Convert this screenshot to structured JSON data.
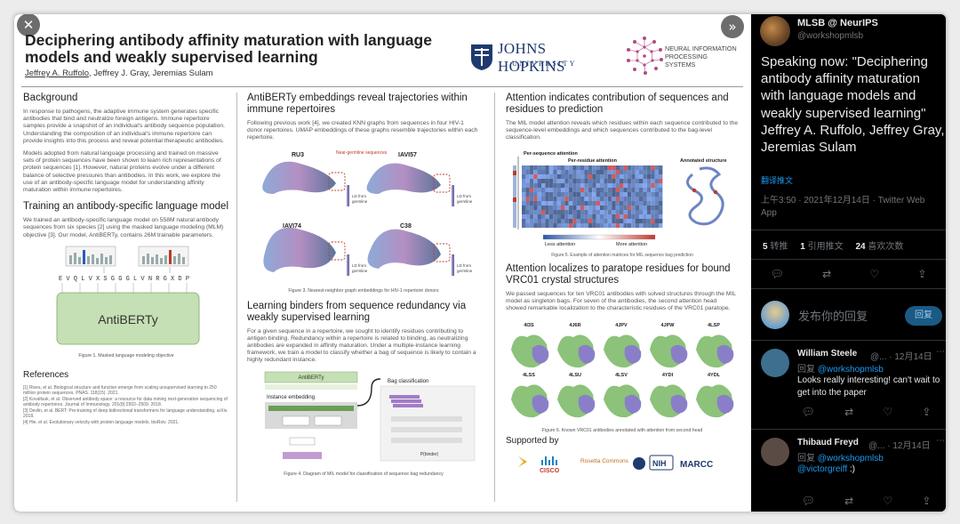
{
  "viewer": {
    "close_glyph": "✕",
    "expand_glyph": "»",
    "poster": {
      "title": "Deciphering antibody affinity maturation with language models and weakly supervised learning",
      "authors": {
        "first": "Jeffrey A. Ruffolo",
        "rest": ", Jeffrey J. Gray, Jeremias Sulam"
      },
      "logos": {
        "jhu_line1": "JOHNS HOPKINS",
        "jhu_line2": "UNIVERSITY",
        "neurips": "NEURAL INFORMATION PROCESSING SYSTEMS"
      },
      "col1": {
        "background_h": "Background",
        "background_p1": "In response to pathogens, the adaptive immune system generates specific antibodies that bind and neutralize foreign antigens. Immune repertoire samples provide a snapshot of an individual's antibody sequence population. Understanding the composition of an individual's immune repertoire can provide insights into this process and reveal potential therapeutic antibodies.",
        "background_p2": "Models adopted from natural language processing and trained on massive sets of protein sequences have been shown to learn rich representations of protein sequences [1]. However, natural proteins evolve under a different balance of selective pressures than antibodies. In this work, we explore the use of an antibody-specific language model for understanding affinity maturation within immune repertoires.",
        "training_h": "Training an antibody-specific language model",
        "training_p": "We trained an antibody-specific language model on 558M natural antibody sequences from six species [2] using the masked language modeling (MLM) objective [3]. Our model, AntiBERTy, contains 26M trainable parameters.",
        "sequence": "E V Q L V X S G G G L V N R G X D P",
        "model_label": "AntiBERTy",
        "fig1": "Figure 1. Masked language modeling objective",
        "refs_h": "References",
        "refs": [
          "[1]  Rives, et al. Biological structure and function emerge from scaling unsupervised learning to 250 million protein sequences. PNAS. 118(15). 2021.",
          "[2]  Kovaltsuk, et al. Observed antibody space: a resource for data mining next-generation sequencing of antibody repertoires. Journal of Immunology. 201(8):2502–2509. 2018.",
          "[3]  Devlin, et al. BERT: Pre-training of deep bidirectional transformers for language understanding. arXiv. 2018.",
          "[4]  Hie, et al. Evolutionary velocity with protein language models. bioRxiv. 2021."
        ]
      },
      "col2": {
        "embed_h": "AntiBERTy embeddings reveal trajectories within immune repertoires",
        "embed_p": "Following previous work [4], we created KNN graphs from sequences in four HIV-1 donor repertoires. UMAP embeddings of these graphs resemble trajectories within each repertoire.",
        "umap_labels": [
          "RU3",
          "IAVI57",
          "IAVI74",
          "C38"
        ],
        "near_germline": "Near-germline sequences",
        "ld_from": "LD from",
        "germline": "germline",
        "fig3": "Figure 3. Nearest-neighbor graph embeddings for HIV-1 repertoire donors",
        "binders_h": "Learning binders from sequence redundancy via weakly supervised learning",
        "binders_p": "For a given sequence in a repertoire, we sought to identify residues contributing to antigen binding. Redundancy within a repertoire is related to binding, as neutralizing antibodies are expanded in affinity maturation. Under a multiple-instance learning framework, we train a model to classify whether a bag of sequence is likely to contain a highly redundant instance.",
        "antiberty_label": "AntiBERTy",
        "instance_embedding": "Instance embedding",
        "bag_classification": "Bag classification",
        "p_binder": "P(binder)",
        "fig4": "Figure 4. Diagram of MIL model for classification of sequence bag redundancy"
      },
      "col3": {
        "attn_h": "Attention indicates contribution of sequences and residues to prediction",
        "attn_p": "The MIL model attention reveals which residues within each sequence contributed to the sequence-level embeddings and which sequences contributed to the bag-level classification.",
        "per_sequence": "Per-sequence attention",
        "per_residue": "Per-residue attention",
        "annotated": "Annotated structure",
        "less_attention": "Less attention",
        "more_attention": "More attention",
        "fig5": "Figure 5. Example of attention matrices for MIL sequence bag prediction",
        "paratope_h": "Attention localizes to paratope residues for bound VRC01 crystal structures",
        "paratope_p": "We passed sequences for ten VRC01 antibodies with solved structures through the MIL model as singleton bags. For seven of the antibodies, the second attention head showed remarkable localization to the characteristic residues of the VRC01 paratope.",
        "pdb_row1": [
          "4I3S",
          "4J6R",
          "4JPV",
          "4JPW",
          "4LSP"
        ],
        "pdb_row2": [
          "4LSS",
          "4LSU",
          "4LSV",
          "4YDI",
          "4YDL"
        ],
        "fig6": "Figure 6. Known VRC01 antibodies annotated with attention from second head",
        "supported_h": "Supported by",
        "sponsors": [
          "CISCO",
          "Rosetta Commons",
          "NIH",
          "MARCC"
        ]
      }
    }
  },
  "panel": {
    "account_name": "MLSB @ NeurIPS",
    "account_handle": "@workshopmlsb",
    "tweet_text": "Speaking now: \"Deciphering antibody affinity maturation with language models and weakly supervised learning\" Jeffrey A. Ruffolo, Jeffrey Gray, Jeremias Sulam",
    "translate_label": "翻译推文",
    "meta": "上午3:50 · 2021年12月14日 · Twitter Web App",
    "stats": [
      {
        "count": "5",
        "label": "转推"
      },
      {
        "count": "1",
        "label": "引用推文"
      },
      {
        "count": "24",
        "label": "喜欢次数"
      }
    ],
    "reply_placeholder": "发布你的回复",
    "reply_button": "回复",
    "replies": [
      {
        "name": "William Steele",
        "meta": "@... · 12月14日",
        "reply_prefix": "回复",
        "reply_to": "@workshopmlsb",
        "text": "Looks really interesting! can't wait to get into the paper",
        "avatar_color": "#3e6f8f"
      },
      {
        "name": "Thibaud Freyd",
        "meta": "@... · 12月14日",
        "reply_prefix": "回复",
        "reply_to": "@workshopmlsb",
        "text_mention": "@victorgreiff",
        "text_suffix": " :)",
        "avatar_color": "#5a4c45"
      }
    ],
    "icons": [
      "comment-icon",
      "retweet-icon",
      "like-icon",
      "share-icon",
      "more-icon"
    ]
  }
}
